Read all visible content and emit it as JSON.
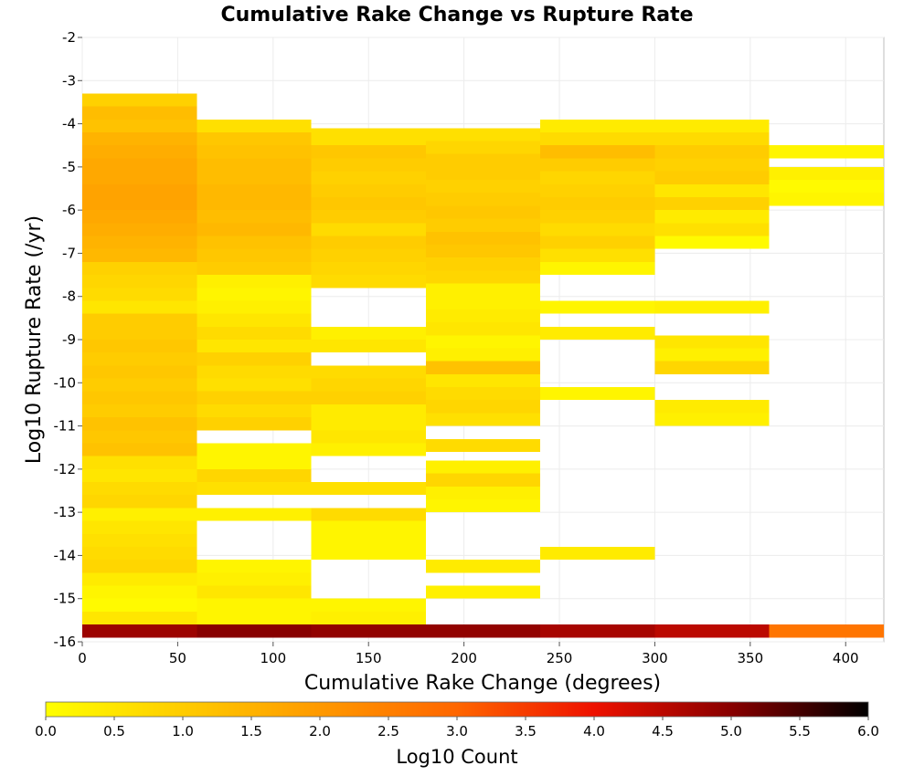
{
  "chart_data": {
    "type": "heatmap",
    "title": "Cumulative Rake Change vs Rupture Rate",
    "xlabel": "Cumulative Rake Change (degrees)",
    "ylabel": "Log10 Rupture Rate (/yr)",
    "xlim": [
      0,
      420
    ],
    "ylim": [
      -16,
      -2
    ],
    "x_ticks": [
      0,
      50,
      100,
      150,
      200,
      250,
      300,
      350,
      400
    ],
    "y_ticks": [
      -16,
      -15,
      -14,
      -13,
      -12,
      -11,
      -10,
      -9,
      -8,
      -7,
      -6,
      -5,
      -4,
      -3,
      -2
    ],
    "grid": true,
    "x_bin_width": 60,
    "y_bin_height": 0.3,
    "colorbar": {
      "label": "Log10 Count",
      "range": [
        0,
        6
      ],
      "ticks": [
        "0.0",
        "0.5",
        "1.0",
        "1.5",
        "2.0",
        "2.5",
        "3.0",
        "3.5",
        "4.0",
        "4.5",
        "5.0",
        "5.5",
        "6.0"
      ],
      "placement": "bottom",
      "colors": [
        "#ffff00",
        "#ffcc00",
        "#ff9900",
        "#ff6600",
        "#ee1100",
        "#880000",
        "#000000"
      ]
    },
    "columns": [
      {
        "x_start": 0,
        "cells": [
          [
            -15.9,
            -15.6,
            4.8
          ],
          [
            -15.6,
            -15.3,
            0.5
          ],
          [
            -15.3,
            -15.0,
            0.1
          ],
          [
            -15.0,
            -14.7,
            0.2
          ],
          [
            -14.7,
            -14.4,
            0.4
          ],
          [
            -14.4,
            -14.1,
            0.8
          ],
          [
            -14.1,
            -13.8,
            0.7
          ],
          [
            -13.8,
            -13.5,
            0.6
          ],
          [
            -13.5,
            -13.2,
            0.5
          ],
          [
            -13.2,
            -12.9,
            0.3
          ],
          [
            -12.9,
            -12.6,
            0.8
          ],
          [
            -12.6,
            -12.3,
            0.7
          ],
          [
            -12.3,
            -12.0,
            0.5
          ],
          [
            -12.0,
            -11.7,
            0.6
          ],
          [
            -11.7,
            -11.4,
            1.2
          ],
          [
            -11.4,
            -11.1,
            1.1
          ],
          [
            -11.1,
            -10.8,
            1.2
          ],
          [
            -10.8,
            -10.5,
            1.0
          ],
          [
            -10.5,
            -10.2,
            1.1
          ],
          [
            -10.2,
            -9.9,
            1.0
          ],
          [
            -9.9,
            -9.6,
            1.1
          ],
          [
            -9.6,
            -9.3,
            1.0
          ],
          [
            -9.3,
            -9.0,
            1.1
          ],
          [
            -9.0,
            -8.7,
            1.0
          ],
          [
            -8.7,
            -8.4,
            1.0
          ],
          [
            -8.4,
            -8.1,
            0.5
          ],
          [
            -8.1,
            -7.8,
            0.7
          ],
          [
            -7.8,
            -7.5,
            0.8
          ],
          [
            -7.5,
            -7.2,
            0.9
          ],
          [
            -7.2,
            -6.9,
            1.4
          ],
          [
            -6.9,
            -6.6,
            1.5
          ],
          [
            -6.6,
            -6.3,
            1.6
          ],
          [
            -6.3,
            -6.0,
            1.7
          ],
          [
            -6.0,
            -5.7,
            1.8
          ],
          [
            -5.7,
            -5.4,
            1.8
          ],
          [
            -5.4,
            -5.1,
            1.7
          ],
          [
            -5.1,
            -4.8,
            1.7
          ],
          [
            -4.8,
            -4.5,
            1.6
          ],
          [
            -4.5,
            -4.2,
            1.5
          ],
          [
            -4.2,
            -3.9,
            1.2
          ],
          [
            -3.9,
            -3.6,
            1.3
          ],
          [
            -3.6,
            -3.3,
            0.9
          ]
        ]
      },
      {
        "x_start": 60,
        "cells": [
          [
            -15.9,
            -15.6,
            5.0
          ],
          [
            -15.6,
            -15.3,
            0.2
          ],
          [
            -15.3,
            -15.0,
            0.2
          ],
          [
            -15.0,
            -14.7,
            0.5
          ],
          [
            -14.7,
            -14.4,
            0.3
          ],
          [
            -14.4,
            -14.1,
            0.2
          ],
          [
            -13.2,
            -12.9,
            0.3
          ],
          [
            -12.6,
            -12.3,
            0.6
          ],
          [
            -12.3,
            -12.0,
            0.8
          ],
          [
            -12.0,
            -11.7,
            0.2
          ],
          [
            -11.7,
            -11.4,
            0.2
          ],
          [
            -11.1,
            -10.8,
            0.9
          ],
          [
            -10.8,
            -10.5,
            0.7
          ],
          [
            -10.5,
            -10.2,
            0.9
          ],
          [
            -10.2,
            -9.9,
            0.6
          ],
          [
            -9.9,
            -9.6,
            0.7
          ],
          [
            -9.6,
            -9.3,
            0.9
          ],
          [
            -9.3,
            -9.0,
            0.5
          ],
          [
            -9.0,
            -8.7,
            0.7
          ],
          [
            -8.7,
            -8.4,
            0.5
          ],
          [
            -8.4,
            -8.1,
            0.3
          ],
          [
            -8.1,
            -7.8,
            0.2
          ],
          [
            -7.8,
            -7.5,
            0.3
          ],
          [
            -7.5,
            -7.2,
            1.0
          ],
          [
            -7.2,
            -6.9,
            1.1
          ],
          [
            -6.9,
            -6.6,
            1.2
          ],
          [
            -6.6,
            -6.3,
            1.4
          ],
          [
            -6.3,
            -6.0,
            1.3
          ],
          [
            -6.0,
            -5.7,
            1.4
          ],
          [
            -5.7,
            -5.4,
            1.4
          ],
          [
            -5.4,
            -5.1,
            1.3
          ],
          [
            -5.1,
            -4.8,
            1.3
          ],
          [
            -4.8,
            -4.5,
            1.2
          ],
          [
            -4.5,
            -4.2,
            1.1
          ],
          [
            -4.2,
            -3.9,
            0.6
          ]
        ]
      },
      {
        "x_start": 120,
        "cells": [
          [
            -15.9,
            -15.6,
            4.9
          ],
          [
            -15.6,
            -15.3,
            0.3
          ],
          [
            -15.3,
            -15.0,
            0.2
          ],
          [
            -14.1,
            -13.8,
            0.2
          ],
          [
            -13.8,
            -13.5,
            0.2
          ],
          [
            -13.5,
            -13.2,
            0.2
          ],
          [
            -13.2,
            -12.9,
            0.7
          ],
          [
            -12.6,
            -12.3,
            0.6
          ],
          [
            -11.7,
            -11.4,
            0.3
          ],
          [
            -11.4,
            -11.1,
            0.5
          ],
          [
            -11.1,
            -10.8,
            0.4
          ],
          [
            -10.8,
            -10.5,
            0.4
          ],
          [
            -10.5,
            -10.2,
            0.9
          ],
          [
            -10.2,
            -9.9,
            0.8
          ],
          [
            -9.9,
            -9.6,
            0.7
          ],
          [
            -9.3,
            -9.0,
            0.5
          ],
          [
            -9.0,
            -8.7,
            0.3
          ],
          [
            -7.8,
            -7.5,
            0.7
          ],
          [
            -7.5,
            -7.2,
            0.8
          ],
          [
            -7.2,
            -6.9,
            0.9
          ],
          [
            -6.9,
            -6.6,
            1.0
          ],
          [
            -6.6,
            -6.3,
            0.7
          ],
          [
            -6.3,
            -6.0,
            1.0
          ],
          [
            -6.0,
            -5.7,
            1.1
          ],
          [
            -5.7,
            -5.4,
            1.0
          ],
          [
            -5.4,
            -5.1,
            0.9
          ],
          [
            -5.1,
            -4.8,
            1.0
          ],
          [
            -4.8,
            -4.5,
            1.1
          ],
          [
            -4.5,
            -4.2,
            0.6
          ],
          [
            -4.2,
            -4.1,
            0.6
          ]
        ]
      },
      {
        "x_start": 180,
        "cells": [
          [
            -15.9,
            -15.6,
            4.9
          ],
          [
            -15.0,
            -14.7,
            0.3
          ],
          [
            -14.4,
            -14.1,
            0.4
          ],
          [
            -13.0,
            -12.7,
            0.2
          ],
          [
            -12.7,
            -12.4,
            0.3
          ],
          [
            -12.4,
            -12.1,
            0.8
          ],
          [
            -12.1,
            -11.8,
            0.3
          ],
          [
            -11.6,
            -11.3,
            0.7
          ],
          [
            -11.0,
            -10.7,
            0.6
          ],
          [
            -10.7,
            -10.4,
            0.8
          ],
          [
            -10.4,
            -10.1,
            0.7
          ],
          [
            -10.1,
            -9.8,
            0.5
          ],
          [
            -9.8,
            -9.5,
            1.2
          ],
          [
            -9.5,
            -9.2,
            0.3
          ],
          [
            -9.2,
            -8.9,
            0.2
          ],
          [
            -8.9,
            -8.6,
            0.5
          ],
          [
            -8.6,
            -8.3,
            0.4
          ],
          [
            -8.3,
            -8.0,
            0.3
          ],
          [
            -8.0,
            -7.7,
            0.3
          ],
          [
            -7.7,
            -7.4,
            0.8
          ],
          [
            -7.4,
            -7.1,
            0.9
          ],
          [
            -7.1,
            -6.8,
            1.1
          ],
          [
            -6.8,
            -6.5,
            1.2
          ],
          [
            -6.5,
            -6.2,
            1.0
          ],
          [
            -6.2,
            -5.9,
            1.1
          ],
          [
            -5.9,
            -5.6,
            1.0
          ],
          [
            -5.6,
            -5.3,
            0.9
          ],
          [
            -5.3,
            -5.0,
            1.0
          ],
          [
            -5.0,
            -4.7,
            1.0
          ],
          [
            -4.7,
            -4.4,
            0.8
          ],
          [
            -4.4,
            -4.1,
            0.6
          ]
        ]
      },
      {
        "x_start": 240,
        "cells": [
          [
            -15.9,
            -15.6,
            4.7
          ],
          [
            -14.1,
            -13.8,
            0.4
          ],
          [
            -10.4,
            -10.1,
            0.2
          ],
          [
            -9.0,
            -8.7,
            0.4
          ],
          [
            -8.4,
            -8.1,
            0.2
          ],
          [
            -7.5,
            -7.2,
            0.2
          ],
          [
            -7.2,
            -6.9,
            0.6
          ],
          [
            -6.9,
            -6.6,
            0.9
          ],
          [
            -6.6,
            -6.3,
            0.7
          ],
          [
            -6.3,
            -6.0,
            0.9
          ],
          [
            -6.0,
            -5.7,
            1.0
          ],
          [
            -5.7,
            -5.4,
            0.9
          ],
          [
            -5.4,
            -5.1,
            0.8
          ],
          [
            -5.1,
            -4.8,
            1.0
          ],
          [
            -4.8,
            -4.5,
            1.3
          ],
          [
            -4.5,
            -4.2,
            0.7
          ],
          [
            -4.2,
            -3.9,
            0.4
          ]
        ]
      },
      {
        "x_start": 300,
        "cells": [
          [
            -15.9,
            -15.6,
            4.5
          ],
          [
            -11.0,
            -10.7,
            0.3
          ],
          [
            -10.7,
            -10.4,
            0.4
          ],
          [
            -9.8,
            -9.5,
            0.8
          ],
          [
            -9.5,
            -9.2,
            0.3
          ],
          [
            -9.2,
            -8.9,
            0.5
          ],
          [
            -8.4,
            -8.1,
            0.3
          ],
          [
            -6.9,
            -6.6,
            0.1
          ],
          [
            -6.6,
            -6.3,
            0.6
          ],
          [
            -6.3,
            -6.0,
            0.4
          ],
          [
            -6.0,
            -5.7,
            0.9
          ],
          [
            -5.7,
            -5.4,
            0.5
          ],
          [
            -5.4,
            -5.1,
            1.0
          ],
          [
            -5.1,
            -4.8,
            0.9
          ],
          [
            -4.8,
            -4.5,
            1.0
          ],
          [
            -4.5,
            -4.2,
            0.7
          ],
          [
            -4.2,
            -3.9,
            0.4
          ]
        ]
      },
      {
        "x_start": 360,
        "cells": [
          [
            -15.9,
            -15.6,
            2.7
          ],
          [
            -5.9,
            -5.6,
            0.2
          ],
          [
            -5.6,
            -5.3,
            0.1
          ],
          [
            -5.3,
            -5.0,
            0.3
          ],
          [
            -4.8,
            -4.5,
            0.2
          ]
        ]
      }
    ]
  }
}
